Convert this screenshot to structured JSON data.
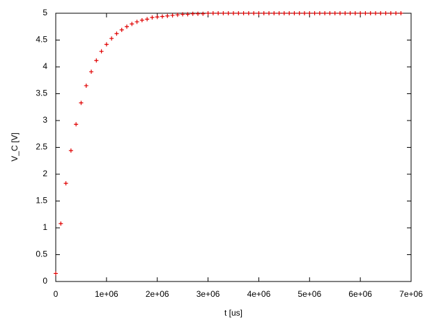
{
  "chart_data": {
    "type": "scatter",
    "xlabel": "t [us]",
    "ylabel": "V_C [V]",
    "series": [
      {
        "color": "#e00000",
        "x": [
          0,
          100000,
          200000,
          300000,
          400000,
          500000,
          600000,
          700000,
          800000,
          900000,
          1000000,
          1100000,
          1200000,
          1300000,
          1400000,
          1500000,
          1600000,
          1700000,
          1800000,
          1900000,
          2000000,
          2100000,
          2200000,
          2300000,
          2400000,
          2500000,
          2600000,
          2700000,
          2800000,
          2900000,
          3000000,
          3100000,
          3200000,
          3300000,
          3400000,
          3500000,
          3600000,
          3700000,
          3800000,
          3900000,
          4000000,
          4100000,
          4200000,
          4300000,
          4400000,
          4500000,
          4600000,
          4700000,
          4800000,
          4900000,
          5000000,
          5100000,
          5200000,
          5300000,
          5400000,
          5500000,
          5600000,
          5700000,
          5800000,
          5900000,
          6000000,
          6100000,
          6200000,
          6300000,
          6400000,
          6500000,
          6600000,
          6700000,
          6800000
        ],
        "values": [
          0.15,
          1.08,
          1.83,
          2.44,
          2.93,
          3.33,
          3.65,
          3.91,
          4.12,
          4.29,
          4.42,
          4.53,
          4.62,
          4.69,
          4.75,
          4.8,
          4.84,
          4.87,
          4.89,
          4.92,
          4.93,
          4.94,
          4.95,
          4.96,
          4.97,
          4.98,
          4.98,
          4.99,
          4.99,
          4.99,
          5,
          5,
          5,
          5,
          5,
          5,
          5,
          5,
          5,
          5,
          5,
          5,
          5,
          5,
          5,
          5,
          5,
          5,
          5,
          5,
          5,
          5,
          5,
          5,
          5,
          5,
          5,
          5,
          5,
          5,
          5,
          5,
          5,
          5,
          5,
          5,
          5,
          5,
          5
        ]
      }
    ],
    "xlim": [
      0,
      7000000
    ],
    "ylim": [
      0,
      5
    ],
    "xticks": [
      0,
      {
        "value": 1000000,
        "label": "1e+06"
      },
      {
        "value": 2000000,
        "label": "2e+06"
      },
      {
        "value": 3000000,
        "label": "3e+06"
      },
      {
        "value": 4000000,
        "label": "4e+06"
      },
      {
        "value": 5000000,
        "label": "5e+06"
      },
      {
        "value": 6000000,
        "label": "6e+06"
      },
      {
        "value": 7000000,
        "label": "7e+06"
      }
    ],
    "yticks": [
      0,
      0.5,
      1,
      1.5,
      2,
      2.5,
      3,
      3.5,
      4,
      4.5,
      5
    ]
  }
}
